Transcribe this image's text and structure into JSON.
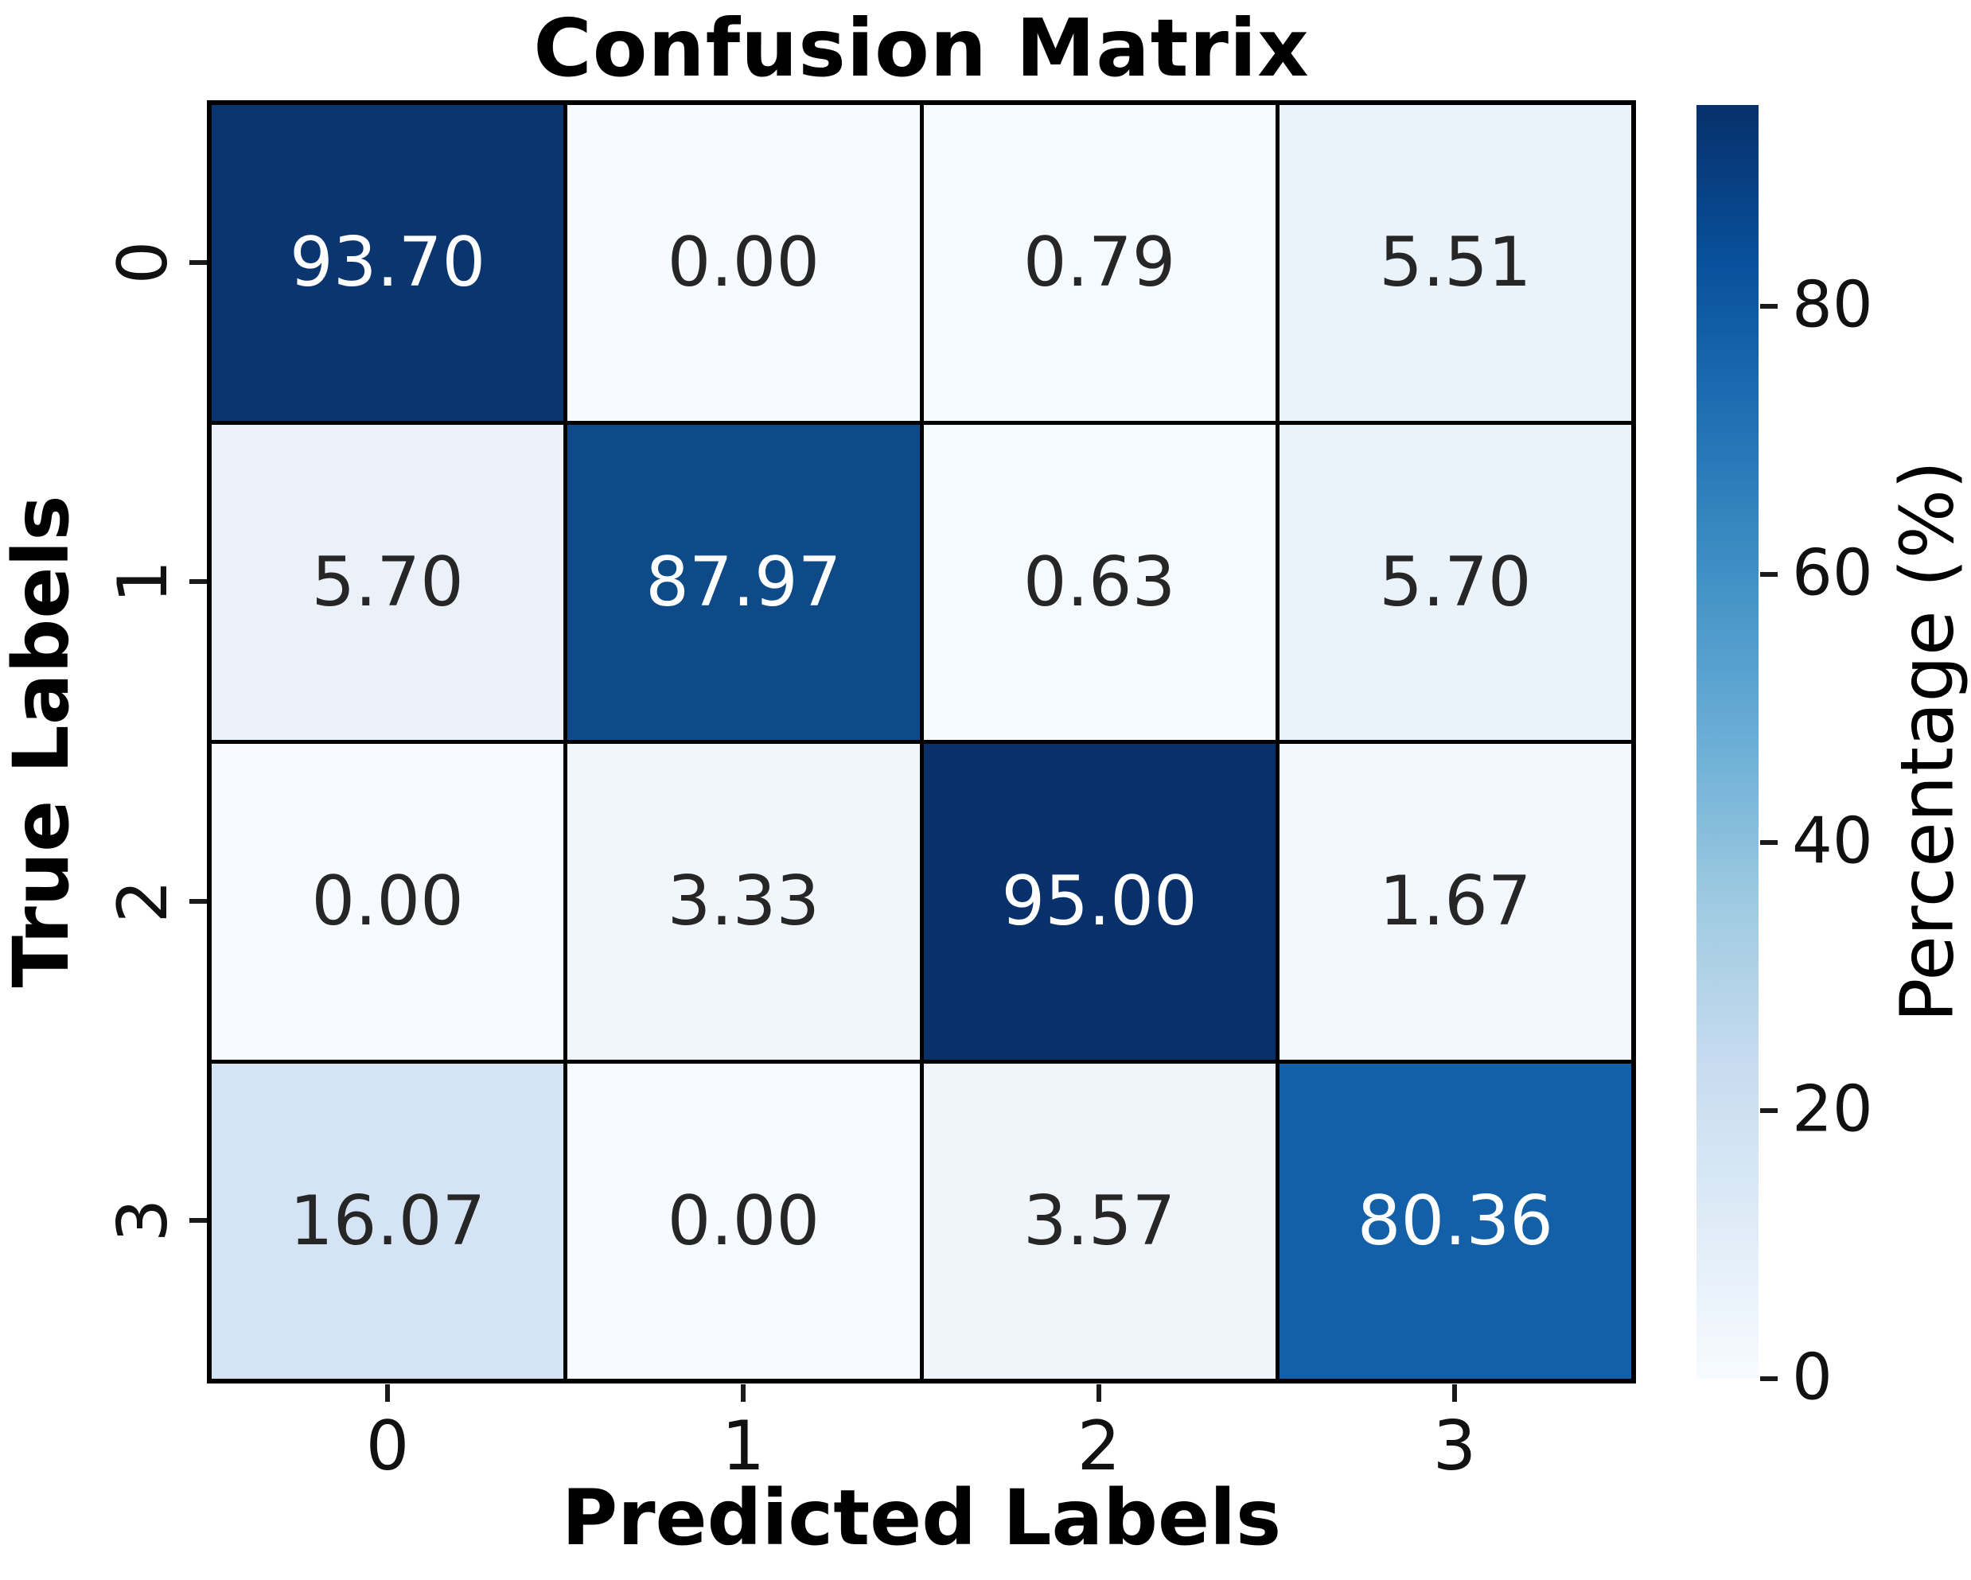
{
  "figure": {
    "title": "Confusion Matrix",
    "xlabel": "Predicted Labels",
    "ylabel": "True Labels"
  },
  "chart_data": {
    "type": "heatmap",
    "title": "Confusion Matrix",
    "xlabel": "Predicted Labels",
    "ylabel": "True Labels",
    "x_categories": [
      "0",
      "1",
      "2",
      "3"
    ],
    "y_categories": [
      "0",
      "1",
      "2",
      "3"
    ],
    "values": [
      [
        93.7,
        0.0,
        0.79,
        5.51
      ],
      [
        5.7,
        87.97,
        0.63,
        5.7
      ],
      [
        0.0,
        3.33,
        95.0,
        1.67
      ],
      [
        16.07,
        0.0,
        3.57,
        80.36
      ]
    ],
    "cell_labels": [
      [
        "93.70",
        "0.00",
        "0.79",
        "5.51"
      ],
      [
        "5.70",
        "87.97",
        "0.63",
        "5.70"
      ],
      [
        "0.00",
        "3.33",
        "95.00",
        "1.67"
      ],
      [
        "16.07",
        "0.00",
        "3.57",
        "80.36"
      ]
    ],
    "cell_colors": [
      [
        "#0a356f",
        "#f7fbff",
        "#f5fafe",
        "#eaf2fa"
      ],
      [
        "#eaf1f9",
        "#0d4a87",
        "#f5fafe",
        "#eaf2fa"
      ],
      [
        "#f7fbff",
        "#f0f6fc",
        "#08306b",
        "#f2f8fd"
      ],
      [
        "#d5e4f4",
        "#f7fbff",
        "#eff5fb",
        "#1360a8"
      ]
    ],
    "cell_text_colors": [
      [
        "#ffffff",
        "#262626",
        "#262626",
        "#262626"
      ],
      [
        "#262626",
        "#ffffff",
        "#262626",
        "#262626"
      ],
      [
        "#262626",
        "#262626",
        "#ffffff",
        "#262626"
      ],
      [
        "#262626",
        "#262626",
        "#262626",
        "#ffffff"
      ]
    ],
    "colorbar": {
      "label": "Percentage (%)",
      "tick_labels": [
        "80",
        "60",
        "40",
        "20",
        "0"
      ],
      "tick_values": [
        80,
        60,
        40,
        20,
        0
      ],
      "vmin": 0,
      "vmax": 95,
      "cmap": "Blues",
      "gradient_stops": [
        "#08306b",
        "#08519c",
        "#2171b5",
        "#4292c6",
        "#6baed6",
        "#9ecae1",
        "#c6dbef",
        "#deebf7",
        "#f7fbff"
      ]
    },
    "grid_color": "#000000",
    "background": "#ffffff",
    "legend_position": "right-colorbar",
    "grid": false
  }
}
